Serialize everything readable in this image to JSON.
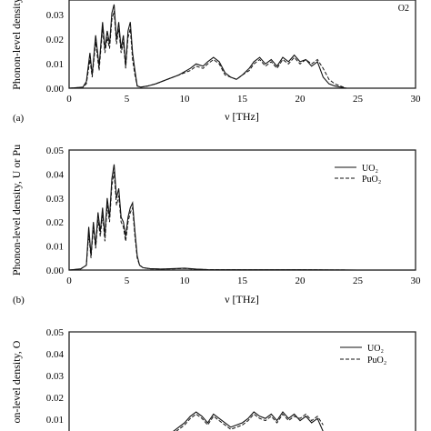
{
  "chart_data": [
    {
      "type": "line",
      "panel_label": "(a)",
      "xlabel": "ν [THz]",
      "ylabel": "Phonon-level density",
      "xlim": [
        0,
        30
      ],
      "ylim": [
        0,
        0.04
      ],
      "xticks": [
        "0",
        "5",
        "10",
        "15",
        "20",
        "25",
        "30"
      ],
      "yticks": [
        "0.00",
        "0.01",
        "0.02",
        "0.03"
      ],
      "legend_partial": "O2",
      "series": [
        {
          "style": "solid",
          "x": [
            0,
            1.2,
            1.5,
            1.8,
            2.0,
            2.3,
            2.6,
            2.9,
            3.1,
            3.3,
            3.5,
            3.7,
            3.9,
            4.1,
            4.3,
            4.5,
            4.7,
            4.9,
            5.1,
            5.3,
            5.5,
            5.7,
            5.9,
            6.2,
            6.8,
            7.5,
            8.5,
            9.5,
            10.5,
            11.0,
            11.6,
            12.0,
            12.5,
            13.0,
            13.5,
            14.0,
            14.5,
            15.0,
            15.6,
            16.0,
            16.5,
            17.0,
            17.5,
            18.0,
            18.5,
            19.0,
            19.5,
            20.0,
            20.5,
            21.0,
            21.5,
            22.0,
            22.5,
            23.0,
            23.5,
            24.0
          ],
          "y": [
            0,
            0.0005,
            0.003,
            0.016,
            0.006,
            0.024,
            0.01,
            0.03,
            0.018,
            0.026,
            0.02,
            0.034,
            0.038,
            0.022,
            0.03,
            0.018,
            0.024,
            0.01,
            0.026,
            0.03,
            0.016,
            0.008,
            0.001,
            0.0005,
            0.001,
            0.002,
            0.004,
            0.006,
            0.009,
            0.011,
            0.01,
            0.012,
            0.014,
            0.012,
            0.007,
            0.005,
            0.004,
            0.006,
            0.009,
            0.012,
            0.014,
            0.011,
            0.013,
            0.01,
            0.014,
            0.012,
            0.015,
            0.012,
            0.013,
            0.01,
            0.012,
            0.005,
            0.002,
            0.001,
            0.0005,
            0
          ]
        },
        {
          "style": "dashed",
          "x": [
            0,
            1.2,
            1.5,
            1.8,
            2.0,
            2.3,
            2.6,
            2.9,
            3.1,
            3.3,
            3.5,
            3.7,
            3.9,
            4.1,
            4.3,
            4.5,
            4.7,
            4.9,
            5.1,
            5.3,
            5.5,
            5.7,
            5.9,
            6.2,
            6.8,
            7.5,
            8.5,
            9.5,
            10.5,
            11.0,
            11.6,
            12.0,
            12.5,
            13.0,
            13.5,
            14.0,
            14.5,
            15.0,
            15.6,
            16.0,
            16.5,
            17.0,
            17.5,
            18.0,
            18.5,
            19.0,
            19.5,
            20.0,
            20.5,
            21.0,
            21.5,
            22.0,
            22.5,
            23.0,
            23.5,
            24.0
          ],
          "y": [
            0,
            0.0004,
            0.002,
            0.013,
            0.005,
            0.021,
            0.008,
            0.027,
            0.016,
            0.023,
            0.018,
            0.031,
            0.035,
            0.02,
            0.027,
            0.016,
            0.021,
            0.009,
            0.023,
            0.027,
            0.013,
            0.006,
            0.001,
            0.0004,
            0.001,
            0.002,
            0.004,
            0.006,
            0.008,
            0.01,
            0.009,
            0.011,
            0.013,
            0.011,
            0.006,
            0.005,
            0.004,
            0.006,
            0.008,
            0.011,
            0.013,
            0.01,
            0.012,
            0.009,
            0.013,
            0.011,
            0.014,
            0.011,
            0.013,
            0.011,
            0.013,
            0.009,
            0.004,
            0.002,
            0.001,
            0
          ]
        }
      ]
    },
    {
      "type": "line",
      "panel_label": "(b)",
      "xlabel": "ν [THz]",
      "ylabel": "Phonon-level density, U or Pu",
      "xlim": [
        0,
        30
      ],
      "ylim": [
        0,
        0.05
      ],
      "xticks": [
        "0",
        "5",
        "10",
        "15",
        "20",
        "25",
        "30"
      ],
      "yticks": [
        "0.00",
        "0.01",
        "0.02",
        "0.03",
        "0.04",
        "0.05"
      ],
      "legend": [
        "UO₂",
        "PuO₂"
      ],
      "series": [
        {
          "name": "UO₂",
          "style": "solid",
          "x": [
            0,
            1.0,
            1.5,
            1.7,
            1.9,
            2.1,
            2.3,
            2.5,
            2.7,
            2.9,
            3.1,
            3.3,
            3.5,
            3.7,
            3.9,
            4.1,
            4.3,
            4.5,
            4.7,
            4.9,
            5.1,
            5.3,
            5.5,
            5.7,
            5.9,
            6.1,
            6.4,
            7.0,
            8.0,
            9.0,
            10.0,
            11.0,
            12.0,
            15.0,
            20.0,
            25.0,
            30.0
          ],
          "y": [
            0,
            0.0005,
            0.002,
            0.018,
            0.006,
            0.02,
            0.01,
            0.024,
            0.016,
            0.026,
            0.014,
            0.03,
            0.022,
            0.038,
            0.044,
            0.03,
            0.034,
            0.022,
            0.02,
            0.014,
            0.022,
            0.026,
            0.028,
            0.016,
            0.006,
            0.002,
            0.001,
            0.0006,
            0.0004,
            0.0006,
            0.0008,
            0.0004,
            0.0002,
            0.0001,
            0.0001,
            0,
            0
          ]
        },
        {
          "name": "PuO₂",
          "style": "dashed",
          "x": [
            0,
            1.0,
            1.5,
            1.7,
            1.9,
            2.1,
            2.3,
            2.5,
            2.7,
            2.9,
            3.1,
            3.3,
            3.5,
            3.7,
            3.9,
            4.1,
            4.3,
            4.5,
            4.7,
            4.9,
            5.1,
            5.3,
            5.5,
            5.7,
            5.9,
            6.1,
            6.4,
            7.0,
            8.0,
            9.0,
            10.0,
            11.0,
            12.0,
            15.0,
            20.0,
            25.0,
            30.0
          ],
          "y": [
            0,
            0.0004,
            0.002,
            0.015,
            0.005,
            0.018,
            0.009,
            0.021,
            0.014,
            0.023,
            0.012,
            0.027,
            0.02,
            0.035,
            0.041,
            0.027,
            0.031,
            0.02,
            0.018,
            0.012,
            0.02,
            0.024,
            0.026,
            0.014,
            0.005,
            0.002,
            0.001,
            0.0005,
            0.0004,
            0.0005,
            0.0007,
            0.0003,
            0.0002,
            0.0001,
            0.0001,
            0,
            0
          ]
        }
      ]
    },
    {
      "type": "line",
      "panel_label": "",
      "xlabel": "",
      "ylabel": "on-level density, O",
      "xlim": [
        0,
        30
      ],
      "ylim": [
        0,
        0.05
      ],
      "yticks": [
        "0.05",
        "0.04",
        "0.03",
        "0.02",
        "0.01"
      ],
      "legend": [
        "UO₂",
        "PuO₂"
      ],
      "series": [
        {
          "name": "UO₂",
          "style": "solid",
          "x": [
            8.5,
            9.0,
            9.5,
            10.0,
            10.5,
            11.0,
            11.5,
            12.0,
            12.5,
            13.0,
            14.0,
            15.0,
            15.5,
            16.0,
            16.5,
            17.0,
            17.5,
            18.0,
            18.5,
            19.0,
            19.5,
            20.0,
            20.5,
            21.0,
            21.5,
            22.0
          ],
          "y": [
            0.004,
            0.006,
            0.008,
            0.01,
            0.013,
            0.015,
            0.013,
            0.01,
            0.014,
            0.012,
            0.008,
            0.01,
            0.012,
            0.015,
            0.013,
            0.012,
            0.014,
            0.011,
            0.015,
            0.012,
            0.014,
            0.011,
            0.013,
            0.01,
            0.012,
            0.006
          ]
        },
        {
          "name": "PuO₂",
          "style": "dashed",
          "x": [
            8.5,
            9.0,
            9.5,
            10.0,
            10.5,
            11.0,
            11.5,
            12.0,
            12.5,
            13.0,
            14.0,
            15.0,
            15.5,
            16.0,
            16.5,
            17.0,
            17.5,
            18.0,
            18.5,
            19.0,
            19.5,
            20.0,
            20.5,
            21.0,
            21.5,
            22.0
          ],
          "y": [
            0.003,
            0.005,
            0.007,
            0.009,
            0.012,
            0.014,
            0.012,
            0.009,
            0.013,
            0.011,
            0.007,
            0.009,
            0.011,
            0.014,
            0.012,
            0.011,
            0.013,
            0.01,
            0.014,
            0.011,
            0.013,
            0.012,
            0.014,
            0.011,
            0.013,
            0.009
          ]
        }
      ]
    }
  ]
}
